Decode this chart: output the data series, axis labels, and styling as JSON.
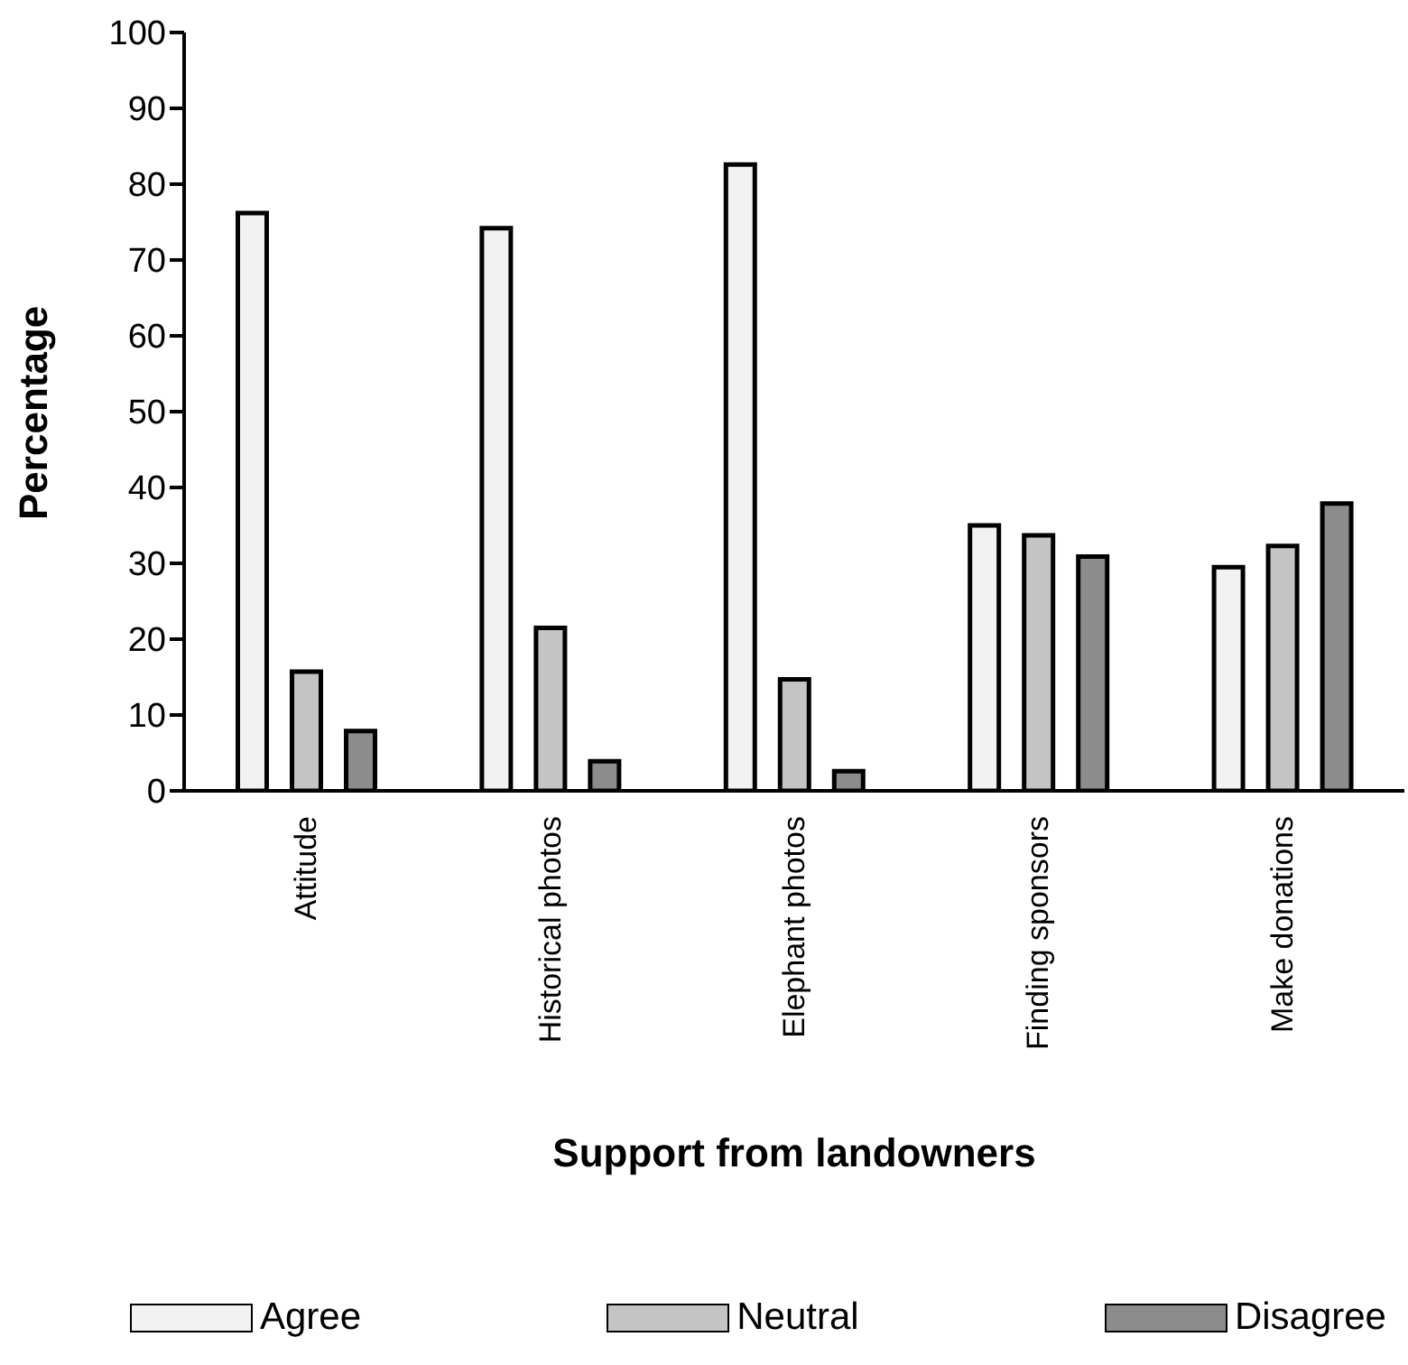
{
  "chart_data": {
    "type": "bar",
    "xlabel": "Support from landowners",
    "ylabel": "Percentage",
    "categories": [
      "Attitude",
      "Historical photos",
      "Elephant photos",
      "Finding sponsors",
      "Make donations"
    ],
    "series": [
      {
        "name": "Agree",
        "color": "#f2f2f2",
        "values": [
          76.2,
          74.2,
          82.6,
          35.0,
          29.5
        ]
      },
      {
        "name": "Neutral",
        "color": "#c4c4c4",
        "values": [
          15.7,
          21.5,
          14.7,
          33.7,
          32.3
        ]
      },
      {
        "name": "Disagree",
        "color": "#8c8c8c",
        "values": [
          7.9,
          3.9,
          2.6,
          30.9,
          37.9
        ]
      }
    ],
    "ylim": [
      0,
      100
    ],
    "yticks": [
      0,
      10,
      20,
      30,
      40,
      50,
      60,
      70,
      80,
      90,
      100
    ],
    "grid": false,
    "legend": "bottom"
  }
}
